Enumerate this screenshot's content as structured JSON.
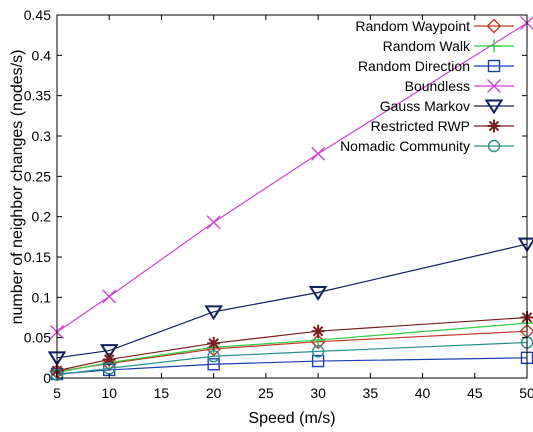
{
  "chart_data": {
    "type": "line",
    "xlabel": "Speed (m/s)",
    "ylabel": "number of neighbor changes (nodes/s)",
    "xlim": [
      5,
      50
    ],
    "ylim": [
      0,
      0.45
    ],
    "x_ticks": [
      "5",
      "10",
      "15",
      "20",
      "25",
      "30",
      "35",
      "40",
      "45",
      "50"
    ],
    "y_ticks": [
      "0",
      "0.05",
      "0.1",
      "0.15",
      "0.2",
      "0.25",
      "0.3",
      "0.35",
      "0.4",
      "0.45"
    ],
    "grid": false,
    "legend_position": "top-right",
    "x": [
      5,
      10,
      20,
      30,
      50
    ],
    "series": [
      {
        "name": "Random Waypoint",
        "color": "#c0392b",
        "marker": "diamond",
        "values": [
          0.008,
          0.018,
          0.036,
          0.045,
          0.058
        ]
      },
      {
        "name": "Random Walk",
        "color": "#2ecc40",
        "marker": "plus",
        "values": [
          0.007,
          0.019,
          0.038,
          0.047,
          0.068
        ]
      },
      {
        "name": "Random Direction",
        "color": "#1a3fb0",
        "marker": "square",
        "values": [
          0.005,
          0.01,
          0.017,
          0.021,
          0.025
        ]
      },
      {
        "name": "Boundless",
        "color": "#d040d0",
        "marker": "x",
        "values": [
          0.057,
          0.101,
          0.193,
          0.278,
          0.44
        ]
      },
      {
        "name": "Gauss Markov",
        "color": "#102060",
        "marker": "triangle-down",
        "values": [
          0.025,
          0.034,
          0.082,
          0.106,
          0.166
        ]
      },
      {
        "name": "Restricted RWP",
        "color": "#7a1f1f",
        "marker": "asterisk",
        "values": [
          0.009,
          0.023,
          0.043,
          0.058,
          0.075
        ]
      },
      {
        "name": "Nomadic Community",
        "color": "#2a8f8f",
        "marker": "circle",
        "values": [
          0.004,
          0.012,
          0.027,
          0.033,
          0.044
        ]
      }
    ]
  }
}
